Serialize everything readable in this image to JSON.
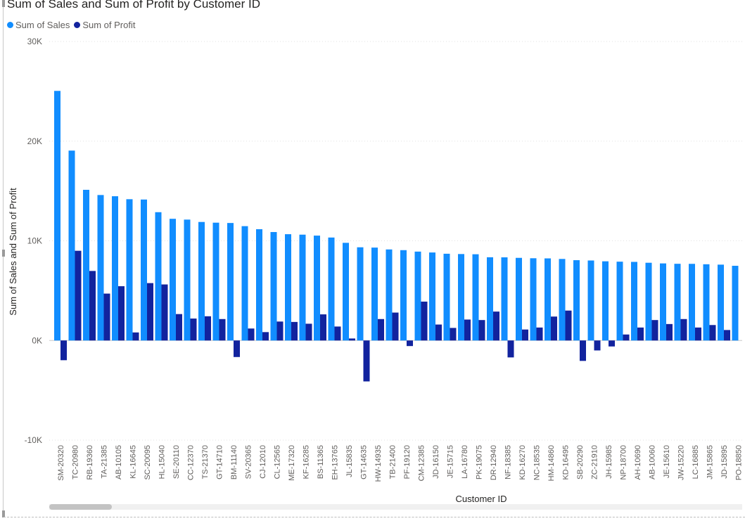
{
  "chart_data": {
    "type": "bar",
    "title": "Sum of Sales and Sum of Profit by Customer ID",
    "xlabel": "Customer ID",
    "ylabel": "Sum of Sales and Sum of Profit",
    "ylim": [
      -10000,
      30000
    ],
    "yticks": [
      30000,
      20000,
      10000,
      0,
      -10000
    ],
    "ytick_labels": [
      "30K",
      "20K",
      "10K",
      "0K",
      "-10K"
    ],
    "grid": true,
    "legend_position": "top-left",
    "categories": [
      "SM-20320",
      "TC-20980",
      "RB-19360",
      "TA-21385",
      "AB-10105",
      "KL-16645",
      "SC-20095",
      "HL-15040",
      "SE-20110",
      "CC-12370",
      "TS-21370",
      "GT-14710",
      "BM-11140",
      "SV-20365",
      "CJ-12010",
      "CL-12565",
      "ME-17320",
      "KF-16285",
      "BS-11365",
      "EH-13765",
      "JL-15835",
      "GT-14635",
      "HW-14935",
      "TB-21400",
      "PF-19120",
      "CM-12385",
      "JD-16150",
      "JE-15715",
      "LA-16780",
      "PK-19075",
      "DR-12940",
      "NF-18385",
      "KD-16270",
      "NC-18535",
      "HM-14860",
      "KD-16495",
      "SB-20290",
      "ZC-21910",
      "JH-15985",
      "NP-18700",
      "AH-10690",
      "AB-10060",
      "JE-15610",
      "JW-15220",
      "LC-16885",
      "JM-15865",
      "JD-15895",
      "PO-18850"
    ],
    "series": [
      {
        "name": "Sum of Sales",
        "color": "#118dff",
        "values": [
          25043,
          19052,
          15117,
          14595,
          14473,
          14175,
          14142,
          12873,
          12209,
          12129,
          11891,
          11820,
          11789,
          11471,
          11165,
          10880,
          10664,
          10618,
          10522,
          10330,
          9799,
          9351,
          9320,
          9134,
          9063,
          8918,
          8829,
          8703,
          8673,
          8652,
          8351,
          8342,
          8290,
          8251,
          8237,
          8181,
          8057,
          8026,
          7944,
          7908,
          7886,
          7799,
          7733,
          7695,
          7689,
          7648,
          7610,
          7493
        ]
      },
      {
        "name": "Sum of Profit",
        "color": "#12239e",
        "values": [
          -1980,
          9000,
          6976,
          4704,
          5445,
          806,
          5757,
          5622,
          2650,
          2200,
          2430,
          2150,
          -1660,
          1200,
          840,
          1900,
          1860,
          1680,
          2620,
          1400,
          200,
          -4108,
          2150,
          2800,
          -560,
          3900,
          1600,
          1260,
          2100,
          2050,
          2900,
          -1700,
          1100,
          1300,
          2400,
          3000,
          -2050,
          -1000,
          -600,
          600,
          1300,
          2050,
          1650,
          2150,
          1300,
          1550,
          1050,
          0
        ]
      }
    ]
  },
  "icons": {
    "legend_marker": "circle"
  }
}
